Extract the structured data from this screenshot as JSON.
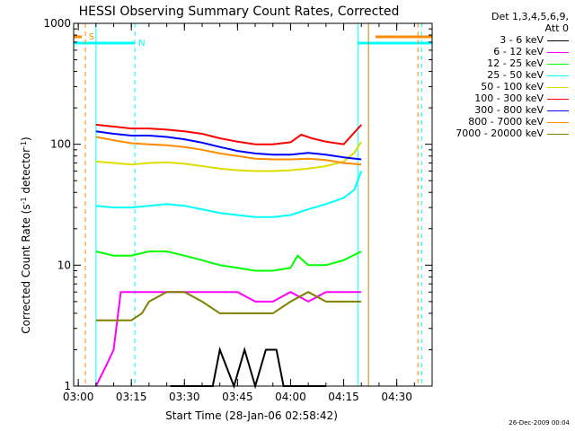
{
  "chart_data": {
    "type": "line",
    "title": "HESSI Observing Summary Count Rates, Corrected",
    "xlabel": "Start Time (28-Jan-06 02:58:42)",
    "ylabel": "Corrected Count Rate (s",
    "ylabel_sup1": "-1",
    "ylabel_mid": " detector",
    "ylabel_sup2": "-1",
    "ylabel_end": ")",
    "ylog": true,
    "ylim": [
      1,
      1000
    ],
    "xlim": [
      "02:58:42",
      "04:40:00"
    ],
    "x_ticks": [
      "03:00",
      "03:15",
      "03:30",
      "03:45",
      "04:00",
      "04:15",
      "04:30"
    ],
    "y_ticks": [
      "1",
      "10",
      "100",
      "1000"
    ],
    "legend_header": [
      "Det 1,3,4,5,6,9,",
      "Att 0"
    ],
    "series": [
      {
        "name": "3 - 6 keV",
        "color": "#000000",
        "x": [
          "03:26",
          "03:30",
          "03:34",
          "03:38",
          "03:40",
          "03:44",
          "03:47",
          "03:50",
          "03:53",
          "03:56",
          "03:58",
          "04:06",
          "04:10"
        ],
        "y": [
          1,
          1,
          1,
          1,
          2,
          1,
          2,
          1,
          2,
          2,
          1,
          1,
          1
        ]
      },
      {
        "name": "6 - 12 keV",
        "color": "#ff00ff",
        "x": [
          "03:05",
          "03:08",
          "03:10",
          "03:12",
          "03:15",
          "03:20",
          "03:25",
          "03:30",
          "03:35",
          "03:40",
          "03:45",
          "03:50",
          "03:55",
          "04:00",
          "04:05",
          "04:10",
          "04:15",
          "04:20"
        ],
        "y": [
          1,
          1.5,
          2,
          6,
          6,
          6,
          6,
          6,
          6,
          6,
          6,
          5,
          5,
          6,
          5,
          6,
          6,
          6
        ]
      },
      {
        "name": "12 - 25 keV",
        "color": "#00ff00",
        "x": [
          "03:05",
          "03:10",
          "03:15",
          "03:20",
          "03:25",
          "03:30",
          "03:35",
          "03:40",
          "03:45",
          "03:50",
          "03:55",
          "04:00",
          "04:02",
          "04:05",
          "04:10",
          "04:15",
          "04:20"
        ],
        "y": [
          13,
          12,
          12,
          13,
          13,
          12,
          11,
          10,
          9.5,
          9,
          9,
          9.5,
          12,
          10,
          10,
          11,
          13
        ]
      },
      {
        "name": "25 - 50 keV",
        "color": "#00ffff",
        "x": [
          "03:05",
          "03:10",
          "03:15",
          "03:20",
          "03:25",
          "03:30",
          "03:35",
          "03:40",
          "03:45",
          "03:50",
          "03:55",
          "04:00",
          "04:05",
          "04:10",
          "04:15",
          "04:18",
          "04:20"
        ],
        "y": [
          31,
          30,
          30,
          31,
          32,
          31,
          29,
          27,
          26,
          25,
          25,
          26,
          29,
          32,
          36,
          42,
          60
        ]
      },
      {
        "name": "50 - 100 keV",
        "color": "#dddd00",
        "x": [
          "03:05",
          "03:10",
          "03:15",
          "03:20",
          "03:25",
          "03:30",
          "03:35",
          "03:40",
          "03:45",
          "03:50",
          "03:55",
          "04:00",
          "04:05",
          "04:10",
          "04:15",
          "04:18",
          "04:20"
        ],
        "y": [
          72,
          70,
          68,
          70,
          71,
          69,
          66,
          63,
          61,
          60,
          60,
          61,
          63,
          66,
          72,
          85,
          105
        ]
      },
      {
        "name": "100 - 300 keV",
        "color": "#ff0000",
        "x": [
          "03:05",
          "03:10",
          "03:15",
          "03:20",
          "03:25",
          "03:30",
          "03:35",
          "03:40",
          "03:45",
          "03:50",
          "03:55",
          "04:00",
          "04:03",
          "04:06",
          "04:10",
          "04:15",
          "04:20"
        ],
        "y": [
          145,
          140,
          135,
          135,
          132,
          128,
          122,
          112,
          105,
          100,
          100,
          104,
          120,
          112,
          105,
          100,
          145
        ]
      },
      {
        "name": "300 - 800 keV",
        "color": "#0000ff",
        "x": [
          "03:05",
          "03:10",
          "03:15",
          "03:20",
          "03:25",
          "03:30",
          "03:35",
          "03:40",
          "03:45",
          "03:50",
          "03:55",
          "04:00",
          "04:05",
          "04:10",
          "04:15",
          "04:20"
        ],
        "y": [
          128,
          122,
          118,
          118,
          115,
          110,
          103,
          95,
          88,
          84,
          82,
          82,
          85,
          82,
          78,
          75
        ]
      },
      {
        "name": "800 - 7000 keV",
        "color": "#ff8c00",
        "x": [
          "03:05",
          "03:10",
          "03:15",
          "03:20",
          "03:25",
          "03:30",
          "03:35",
          "03:40",
          "03:45",
          "03:50",
          "03:55",
          "04:00",
          "04:05",
          "04:10",
          "04:15",
          "04:20"
        ],
        "y": [
          115,
          108,
          102,
          100,
          98,
          95,
          90,
          84,
          80,
          76,
          75,
          75,
          76,
          74,
          70,
          68
        ]
      },
      {
        "name": "7000 - 20000 keV",
        "color": "#808000",
        "x": [
          "03:05",
          "03:10",
          "03:12",
          "03:15",
          "03:18",
          "03:20",
          "03:25",
          "03:30",
          "03:35",
          "03:40",
          "03:45",
          "03:50",
          "03:55",
          "04:00",
          "04:05",
          "04:10",
          "04:15",
          "04:20"
        ],
        "y": [
          3.5,
          3.5,
          3.5,
          3.5,
          4,
          5,
          6,
          6,
          5,
          4,
          4,
          4,
          4,
          5,
          6,
          5,
          5,
          5
        ]
      }
    ],
    "annotations": [
      {
        "label": "S",
        "color": "#ff8c00"
      },
      {
        "label": "N",
        "color": "#00ffff"
      }
    ],
    "timestamp": "26-Dec-2009 00:04"
  }
}
